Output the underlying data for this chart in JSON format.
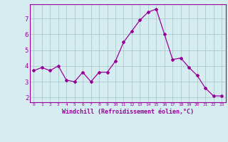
{
  "x": [
    0,
    1,
    2,
    3,
    4,
    5,
    6,
    7,
    8,
    9,
    10,
    11,
    12,
    13,
    14,
    15,
    16,
    17,
    18,
    19,
    20,
    21,
    22,
    23
  ],
  "y": [
    3.7,
    3.9,
    3.7,
    4.0,
    3.1,
    3.0,
    3.6,
    3.0,
    3.6,
    3.6,
    4.3,
    5.5,
    6.2,
    6.9,
    7.4,
    7.6,
    6.0,
    4.4,
    4.5,
    3.9,
    3.4,
    2.6,
    2.1,
    2.1
  ],
  "line_color": "#990099",
  "marker": "D",
  "marker_size": 2,
  "bg_color": "#d5edf0",
  "grid_color": "#aacccc",
  "xlabel": "Windchill (Refroidissement éolien,°C)",
  "xlabel_color": "#990099",
  "tick_color": "#990099",
  "ylabel_ticks": [
    2,
    3,
    4,
    5,
    6,
    7
  ],
  "xlim": [
    -0.5,
    23.5
  ],
  "ylim": [
    1.7,
    7.9
  ]
}
